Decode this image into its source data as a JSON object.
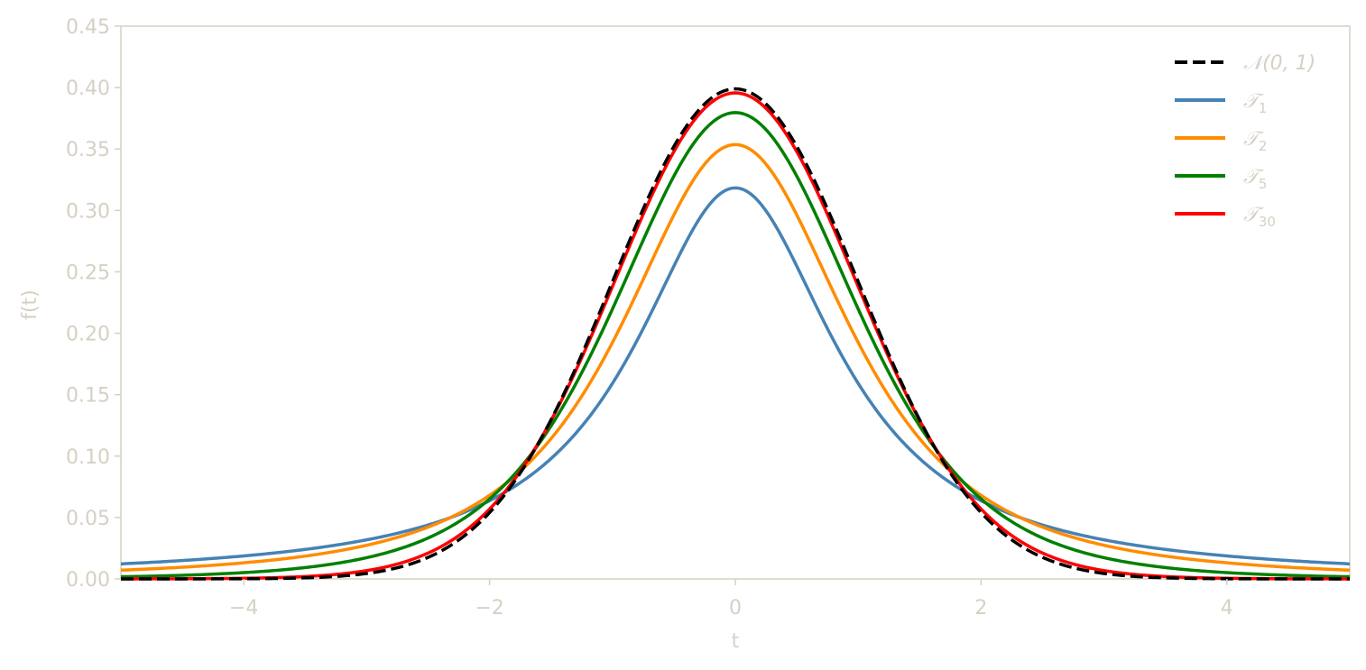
{
  "chart_data": {
    "type": "line",
    "title": "",
    "xlabel": "t",
    "ylabel": "f(t)",
    "xlim": [
      -5,
      5
    ],
    "ylim": [
      0,
      0.45
    ],
    "xticks": [
      -4,
      -2,
      0,
      2,
      4
    ],
    "xtick_labels": [
      "−4",
      "−2",
      "0",
      "2",
      "4"
    ],
    "yticks": [
      0,
      0.05,
      0.1,
      0.15,
      0.2,
      0.25,
      0.3,
      0.35,
      0.4,
      0.45
    ],
    "ytick_labels": [
      "0.00",
      "0.05",
      "0.10",
      "0.15",
      "0.20",
      "0.25",
      "0.30",
      "0.35",
      "0.40",
      "0.45"
    ],
    "grid": false,
    "legend_position": "top-right",
    "axis_color": "#d6d0c4",
    "series": [
      {
        "name": "𝒩(0, 1)",
        "label_main": "𝒩(0, 1)",
        "label_sub": "",
        "distribution": "normal",
        "df": null,
        "color": "#000000",
        "dash": true,
        "peak": 0.399
      },
      {
        "name": "𝒯1",
        "label_main": "𝒯",
        "label_sub": "1",
        "distribution": "student-t",
        "df": 1,
        "color": "#4682b4",
        "dash": false,
        "peak": 0.318
      },
      {
        "name": "𝒯2",
        "label_main": "𝒯",
        "label_sub": "2",
        "distribution": "student-t",
        "df": 2,
        "color": "#ff8c00",
        "dash": false,
        "peak": 0.354
      },
      {
        "name": "𝒯5",
        "label_main": "𝒯",
        "label_sub": "5",
        "distribution": "student-t",
        "df": 5,
        "color": "#008000",
        "dash": false,
        "peak": 0.38
      },
      {
        "name": "𝒯30",
        "label_main": "𝒯",
        "label_sub": "30",
        "distribution": "student-t",
        "df": 30,
        "color": "#ff0000",
        "dash": false,
        "peak": 0.395
      }
    ]
  }
}
